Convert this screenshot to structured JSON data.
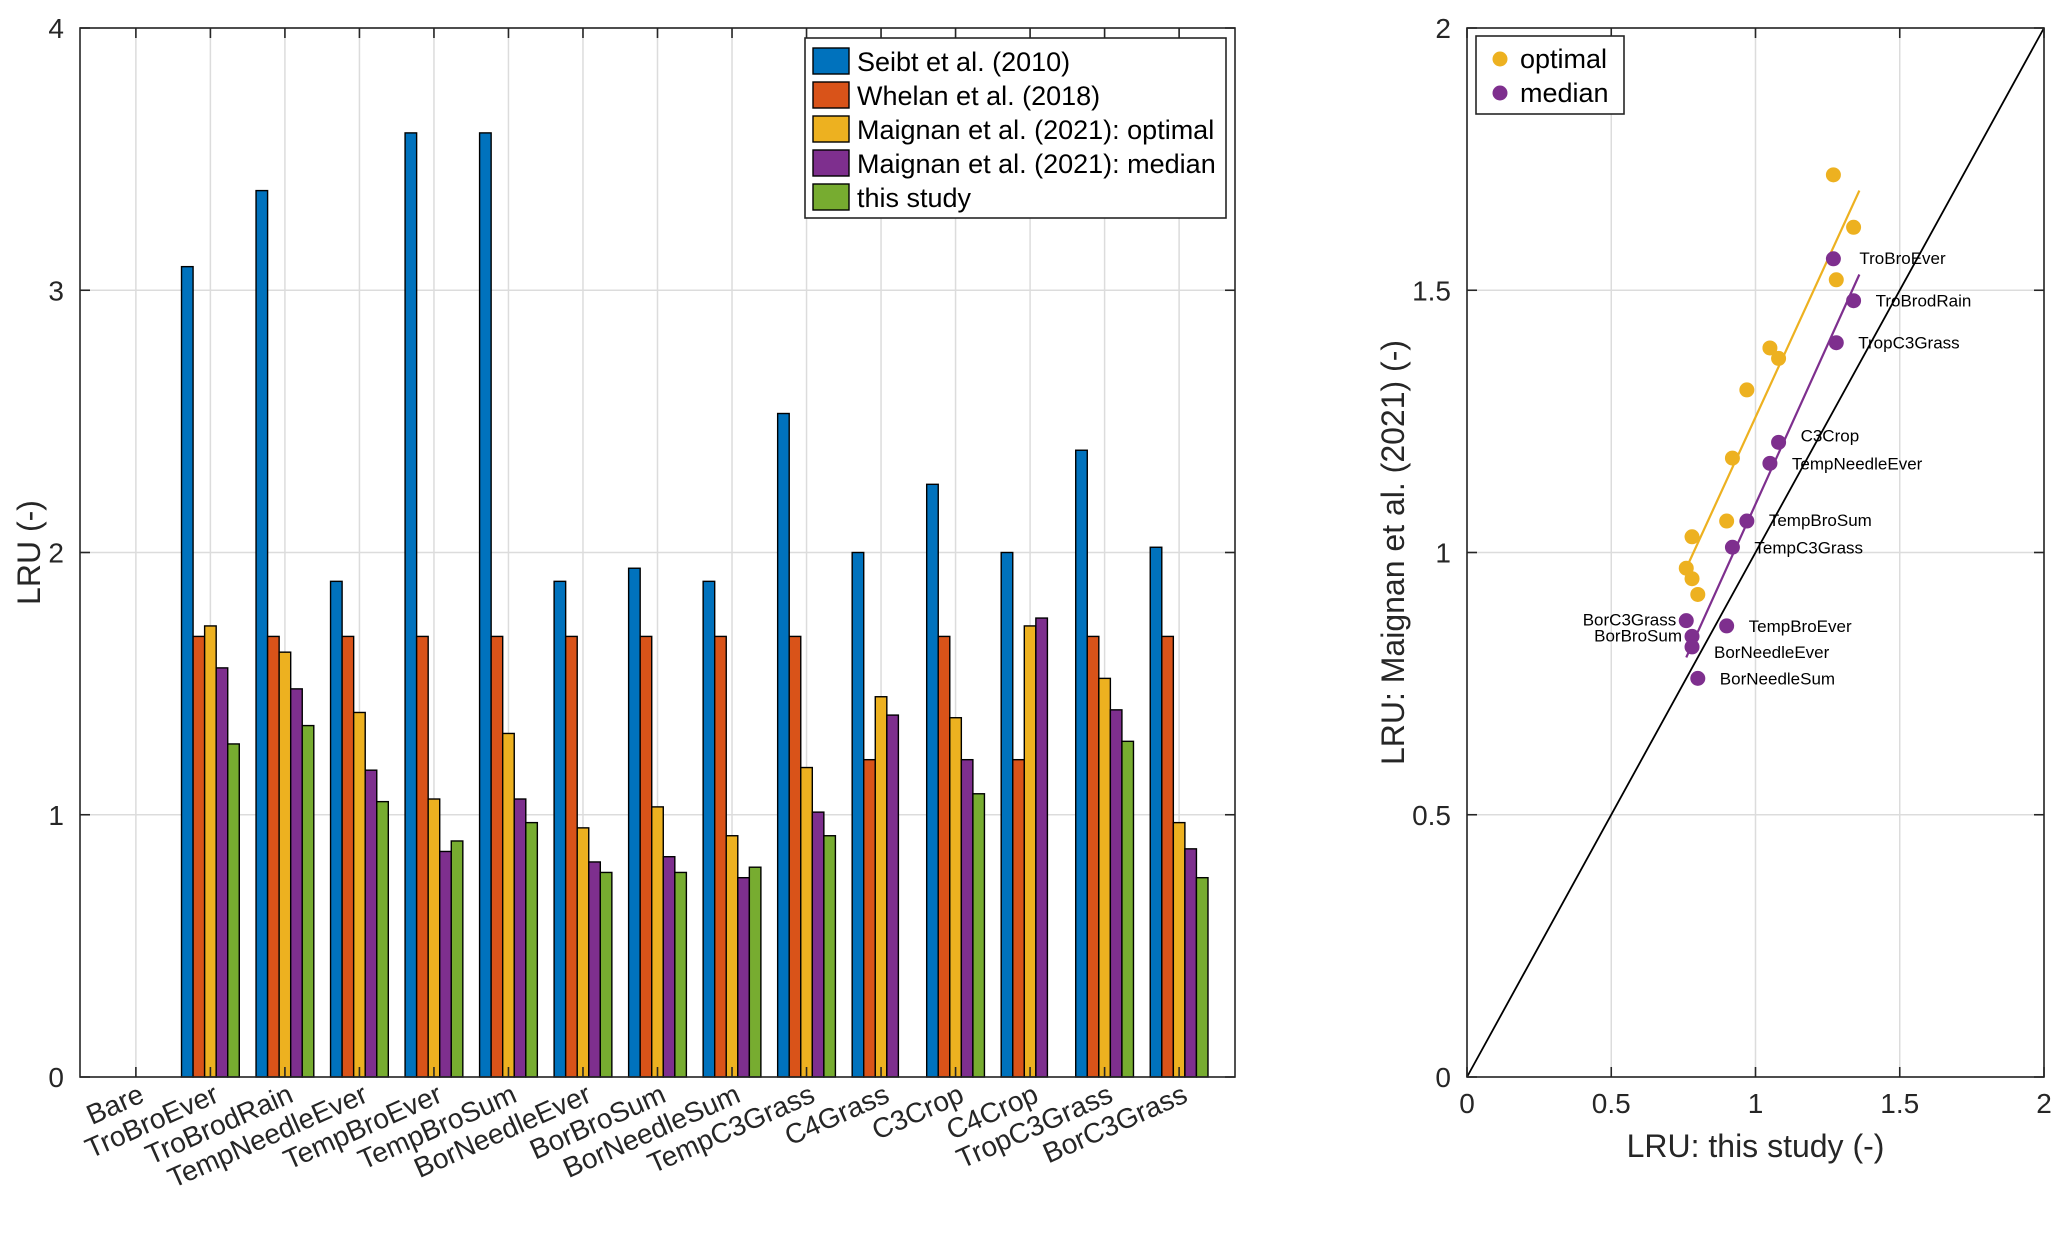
{
  "chart_data": [
    {
      "type": "bar",
      "title": "",
      "xlabel": "",
      "ylabel": "LRU (-)",
      "ylim": [
        0,
        4
      ],
      "yticks": [
        0,
        1,
        2,
        3,
        4
      ],
      "categories": [
        "Bare",
        "TroBroEver",
        "TroBrodRain",
        "TempNeedleEver",
        "TempBroEver",
        "TempBroSum",
        "BorNeedleEver",
        "BorBroSum",
        "BorNeedleSum",
        "TempC3Grass",
        "C4Grass",
        "C3Crop",
        "C4Crop",
        "TropC3Grass",
        "BorC3Grass"
      ],
      "legend_position": "top-right",
      "series": [
        {
          "name": "Seibt et al. (2010)",
          "color": "#0072BD",
          "values": [
            null,
            3.09,
            3.38,
            1.89,
            3.6,
            3.6,
            1.89,
            1.94,
            1.89,
            2.53,
            2.0,
            2.26,
            2.0,
            2.39,
            2.02
          ]
        },
        {
          "name": "Whelan et al. (2018)",
          "color": "#D95319",
          "values": [
            null,
            1.68,
            1.68,
            1.68,
            1.68,
            1.68,
            1.68,
            1.68,
            1.68,
            1.68,
            1.21,
            1.68,
            1.21,
            1.68,
            1.68
          ]
        },
        {
          "name": "Maignan et al. (2021): optimal",
          "color": "#EDB120",
          "values": [
            null,
            1.72,
            1.62,
            1.39,
            1.06,
            1.31,
            0.95,
            1.03,
            0.92,
            1.18,
            1.45,
            1.37,
            1.72,
            1.52,
            0.97
          ]
        },
        {
          "name": "Maignan et al. (2021): median",
          "color": "#7E2F8E",
          "values": [
            null,
            1.56,
            1.48,
            1.17,
            0.86,
            1.06,
            0.82,
            0.84,
            0.76,
            1.01,
            1.38,
            1.21,
            1.75,
            1.4,
            0.87
          ]
        },
        {
          "name": "this study",
          "color": "#77AC30",
          "values": [
            null,
            1.27,
            1.34,
            1.05,
            0.9,
            0.97,
            0.78,
            0.78,
            0.8,
            0.92,
            null,
            1.08,
            null,
            1.28,
            0.76
          ]
        }
      ]
    },
    {
      "type": "scatter",
      "title": "",
      "xlabel": "LRU: this study (-)",
      "ylabel": "LRU: Maignan et al. (2021) (-)",
      "xlim": [
        0,
        2
      ],
      "ylim": [
        0,
        2
      ],
      "xticks": [
        0,
        0.5,
        1,
        1.5,
        2
      ],
      "yticks": [
        0,
        0.5,
        1,
        1.5,
        2
      ],
      "xtick_labels": [
        "0",
        "0.5",
        "1",
        "1.5",
        "2"
      ],
      "ytick_labels": [
        "0",
        "0.5",
        "1",
        "1.5",
        "2"
      ],
      "legend_position": "top-left",
      "one_to_one_line": true,
      "series": [
        {
          "name": "optimal",
          "color": "#EDB120",
          "points": [
            {
              "x": 1.27,
              "y": 1.72
            },
            {
              "x": 1.34,
              "y": 1.62
            },
            {
              "x": 1.28,
              "y": 1.52
            },
            {
              "x": 1.05,
              "y": 1.39
            },
            {
              "x": 1.08,
              "y": 1.37
            },
            {
              "x": 0.97,
              "y": 1.31
            },
            {
              "x": 0.92,
              "y": 1.18
            },
            {
              "x": 0.9,
              "y": 1.06
            },
            {
              "x": 0.78,
              "y": 1.03
            },
            {
              "x": 0.76,
              "y": 0.97
            },
            {
              "x": 0.78,
              "y": 0.95
            },
            {
              "x": 0.8,
              "y": 0.92
            }
          ],
          "fit": {
            "x1": 0.76,
            "y1": 0.97,
            "x2": 1.36,
            "y2": 1.69
          }
        },
        {
          "name": "median",
          "color": "#7E2F8E",
          "points": [
            {
              "x": 1.27,
              "y": 1.56,
              "label": "TroBroEver"
            },
            {
              "x": 1.34,
              "y": 1.48,
              "label": "TroBrodRain"
            },
            {
              "x": 1.28,
              "y": 1.4,
              "label": "TropC3Grass"
            },
            {
              "x": 1.08,
              "y": 1.21,
              "label": "C3Crop"
            },
            {
              "x": 1.05,
              "y": 1.17,
              "label": "TempNeedleEver"
            },
            {
              "x": 0.97,
              "y": 1.06,
              "label": "TempBroSum"
            },
            {
              "x": 0.92,
              "y": 1.01,
              "label": "TempC3Grass"
            },
            {
              "x": 0.76,
              "y": 0.87,
              "label": "BorC3Grass"
            },
            {
              "x": 0.9,
              "y": 0.86,
              "label": "TempBroEver"
            },
            {
              "x": 0.78,
              "y": 0.84,
              "label": "BorBroSum"
            },
            {
              "x": 0.78,
              "y": 0.82,
              "label": "BorNeedleEver"
            },
            {
              "x": 0.8,
              "y": 0.76,
              "label": "BorNeedleSum"
            }
          ],
          "fit": {
            "x1": 0.76,
            "y1": 0.8,
            "x2": 1.36,
            "y2": 1.53
          }
        }
      ]
    }
  ]
}
